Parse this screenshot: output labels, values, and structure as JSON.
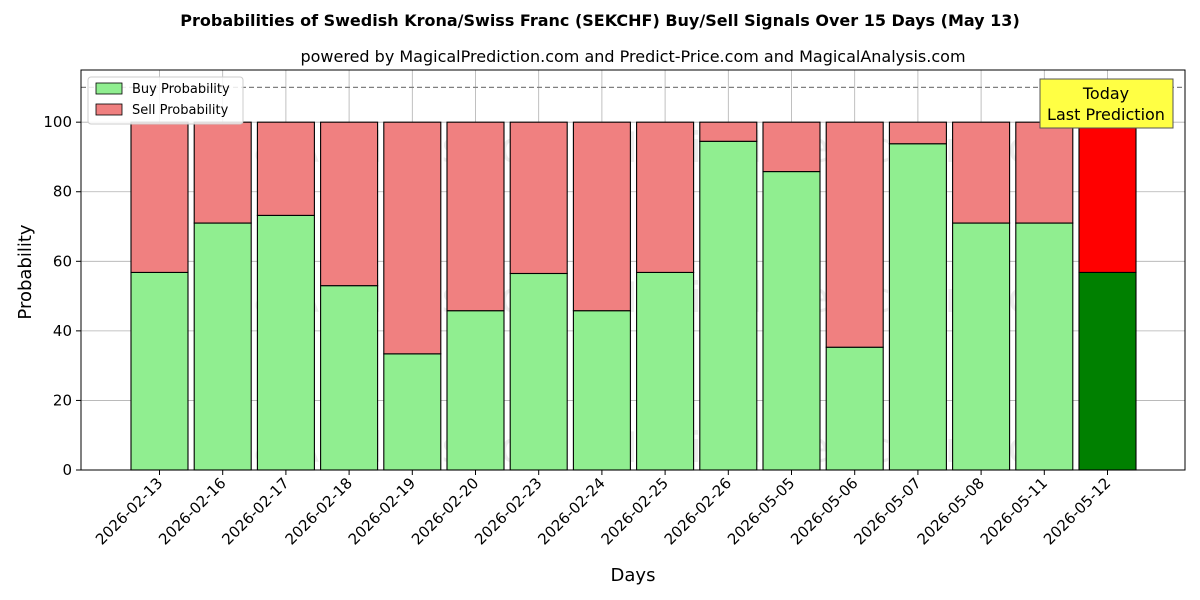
{
  "chart_data": {
    "type": "bar",
    "stacked": true,
    "title": "Probabilities of Swedish Krona/Swiss Franc (SEKCHF) Buy/Sell Signals Over 15 Days (May 13)",
    "subtitle": "powered by MagicalPrediction.com and Predict-Price.com and MagicalAnalysis.com",
    "xlabel": "Days",
    "ylabel": "Probability",
    "ylim": [
      0,
      115
    ],
    "yticks": [
      0,
      20,
      40,
      60,
      80,
      100
    ],
    "grid": true,
    "legend_position": "top-left",
    "reference_line": 110,
    "categories": [
      "2026-02-13",
      "2026-02-16",
      "2026-02-17",
      "2026-02-18",
      "2026-02-19",
      "2026-02-20",
      "2026-02-23",
      "2026-02-24",
      "2026-02-25",
      "2026-02-26",
      "2026-05-05",
      "2026-05-06",
      "2026-05-07",
      "2026-05-08",
      "2026-05-11",
      "2026-05-12"
    ],
    "series": [
      {
        "name": "Buy Probability",
        "color": "#90EE90",
        "highlight_color": "#008000",
        "values": [
          56.8,
          71.0,
          73.2,
          53.0,
          33.4,
          45.8,
          56.5,
          45.8,
          56.8,
          94.5,
          85.8,
          35.3,
          93.8,
          71.0,
          71.0,
          56.8
        ]
      },
      {
        "name": "Sell Probability",
        "color": "#F08080",
        "highlight_color": "#FF0000",
        "values": [
          43.2,
          29.0,
          26.8,
          47.0,
          66.6,
          54.2,
          43.5,
          54.2,
          43.2,
          5.5,
          14.2,
          64.7,
          6.2,
          29.0,
          29.0,
          43.2
        ]
      }
    ],
    "annotation": {
      "line1": "Today",
      "line2": "Last Prediction",
      "color": "#FFFF44"
    },
    "watermarks": [
      "MagicalAnalysis.com",
      "MagicalPrediction.com"
    ]
  }
}
